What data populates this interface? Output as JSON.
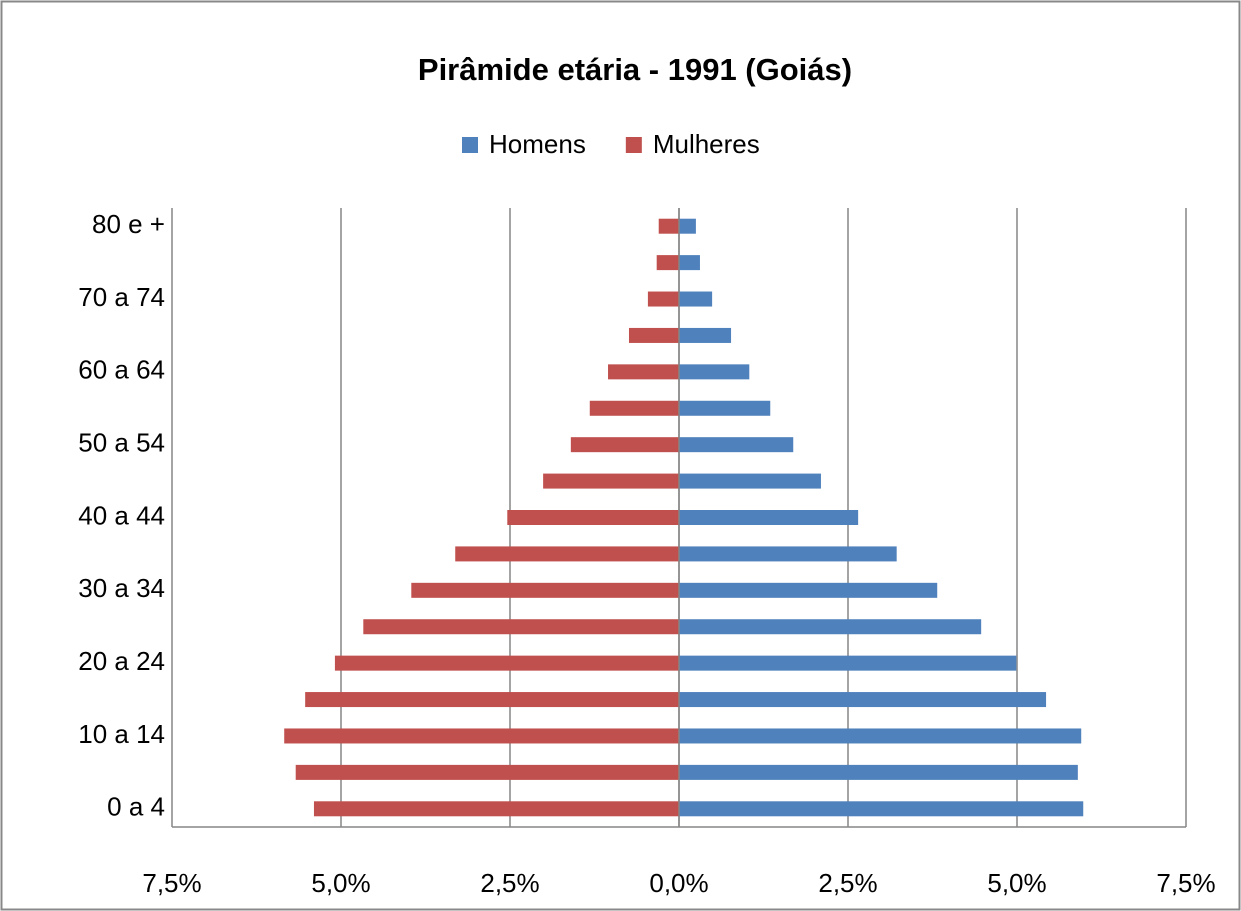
{
  "chart_data": {
    "type": "bar",
    "title": "Pirâmide etária - 1991 (Goiás)",
    "categories": [
      "0 a 4",
      null,
      "10 a 14",
      null,
      "20 a 24",
      null,
      "30 a 34",
      null,
      "40 a 44",
      null,
      "50 a 54",
      null,
      "60 a 64",
      null,
      "70 a 74",
      null,
      "80 e +"
    ],
    "series": [
      {
        "name": "Homens",
        "color": "#4f81bd",
        "values": [
          5.98,
          5.9,
          5.95,
          5.43,
          4.99,
          4.47,
          3.82,
          3.22,
          2.65,
          2.1,
          1.69,
          1.35,
          1.04,
          0.77,
          0.49,
          0.31,
          0.25
        ]
      },
      {
        "name": "Mulheres",
        "color": "#c0504d",
        "values": [
          -5.4,
          -5.67,
          -5.84,
          -5.53,
          -5.09,
          -4.67,
          -3.96,
          -3.31,
          -2.54,
          -2.01,
          -1.6,
          -1.32,
          -1.05,
          -0.74,
          -0.46,
          -0.33,
          -0.3
        ]
      }
    ],
    "xlim": [
      -7.5,
      7.5
    ],
    "xticks": [
      {
        "value": -7.5,
        "label": "7,5%"
      },
      {
        "value": -5,
        "label": "5,0%"
      },
      {
        "value": -2.5,
        "label": "2,5%"
      },
      {
        "value": 0,
        "label": "0,0%"
      },
      {
        "value": 2.5,
        "label": "2,5%"
      },
      {
        "value": 5,
        "label": "5,0%"
      },
      {
        "value": 7.5,
        "label": "7,5%"
      }
    ],
    "grid": true,
    "legend": "top"
  }
}
